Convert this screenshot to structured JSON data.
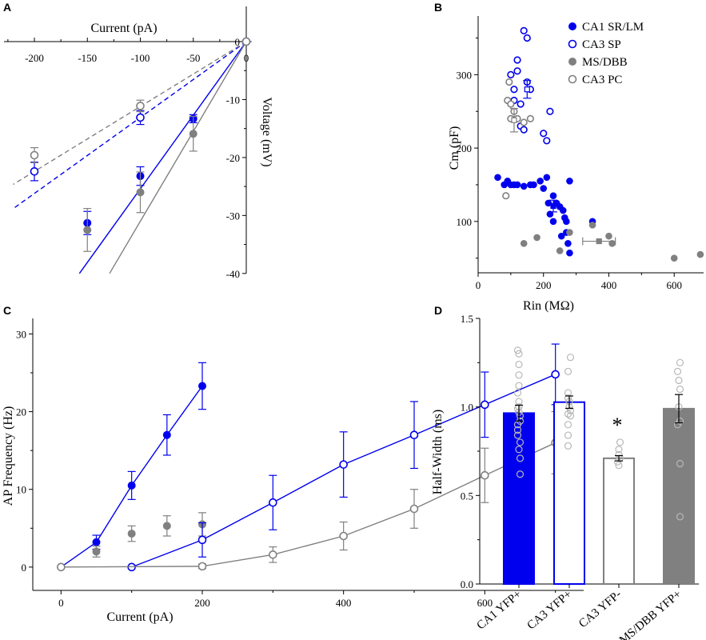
{
  "colors": {
    "blue": "#0000ee",
    "gray": "#808080",
    "lightgray": "#b8b8b8",
    "black": "#000000"
  },
  "chart_data": [
    {
      "panel": "A",
      "type": "scatter",
      "xlabel": "Current (pA)",
      "ylabel": "Voltage (mV)",
      "xlim": [
        -225,
        5
      ],
      "ylim": [
        -40,
        0
      ],
      "xticks": [
        -200,
        -150,
        -100,
        -50,
        0
      ],
      "yticks": [
        0,
        -10,
        -20,
        -30,
        -40
      ],
      "series": [
        {
          "name": "filled blue",
          "style": "filled",
          "color": "#0000ee",
          "x": [
            -150,
            -100,
            -50,
            0
          ],
          "y": [
            -31.3,
            -23.2,
            -13.3,
            0
          ],
          "err": [
            2.0,
            1.6,
            0.7,
            0
          ]
        },
        {
          "name": "filled gray",
          "style": "filled",
          "color": "#808080",
          "x": [
            -150,
            -100,
            -50,
            0
          ],
          "y": [
            -32.5,
            -26.0,
            -15.9,
            0
          ],
          "err": [
            3.7,
            3.5,
            3.0,
            0
          ]
        },
        {
          "name": "open blue",
          "style": "open",
          "color": "#0000ee",
          "x": [
            -200,
            -100,
            0
          ],
          "y": [
            -22.4,
            -13.1,
            0
          ],
          "err": [
            1.6,
            1.2,
            0
          ]
        },
        {
          "name": "open gray",
          "style": "open",
          "color": "#808080",
          "x": [
            -200,
            -100,
            0
          ],
          "y": [
            -19.6,
            -11.1,
            0
          ],
          "err": [
            1.3,
            1.0,
            0
          ]
        }
      ],
      "fits": [
        {
          "color": "#0000ee",
          "dash": false,
          "slope": 0.254
        },
        {
          "color": "#808080",
          "dash": false,
          "slope": 0.31
        },
        {
          "color": "#0000ee",
          "dash": true,
          "slope": 0.131
        },
        {
          "color": "#808080",
          "dash": true,
          "slope": 0.112
        }
      ]
    },
    {
      "panel": "B",
      "type": "scatter",
      "xlabel": "Rin (MΩ)",
      "ylabel": "Cm (pF)",
      "xlim": [
        0,
        690
      ],
      "ylim": [
        30,
        380
      ],
      "xticks": [
        0,
        200,
        400,
        600
      ],
      "yticks": [
        100,
        200,
        300
      ],
      "legend": [
        "CA1 SR/LM",
        "CA3 SP",
        "MS/DBB",
        "CA3 PC"
      ],
      "series": [
        {
          "name": "CA1 SR/LM",
          "style": "filled",
          "color": "#0000ee",
          "x": [
            60,
            80,
            90,
            100,
            110,
            120,
            140,
            160,
            170,
            190,
            200,
            210,
            215,
            220,
            230,
            230,
            240,
            250,
            255,
            260,
            265,
            270,
            270,
            275,
            280,
            280,
            350
          ],
          "y": [
            160,
            150,
            155,
            150,
            150,
            150,
            148,
            150,
            150,
            155,
            145,
            160,
            125,
            110,
            100,
            135,
            125,
            120,
            80,
            115,
            105,
            100,
            85,
            70,
            57,
            155,
            100
          ],
          "mean": {
            "x": 230,
            "y": 121,
            "yerr": 8
          }
        },
        {
          "name": "CA3 SP",
          "style": "open",
          "color": "#0000ee",
          "x": [
            100,
            110,
            120,
            130,
            140,
            150,
            160,
            200,
            210,
            220,
            130,
            140,
            150,
            120,
            110
          ],
          "y": [
            300,
            280,
            320,
            260,
            360,
            350,
            280,
            220,
            210,
            250,
            230,
            225,
            290,
            305,
            265
          ],
          "mean": {
            "x": 150,
            "y": 280,
            "yerr": 12
          }
        },
        {
          "name": "MS/DBB",
          "style": "filled",
          "color": "#808080",
          "x": [
            140,
            180,
            280,
            350,
            400,
            410,
            600,
            680,
            250
          ],
          "y": [
            70,
            78,
            85,
            95,
            80,
            70,
            50,
            55,
            60
          ],
          "mean": {
            "x": 370,
            "y": 73,
            "xerr": 50
          }
        },
        {
          "name": "CA3 PC",
          "style": "open",
          "color": "#808080",
          "x": [
            90,
            95,
            100,
            110,
            120,
            140,
            160,
            100,
            85
          ],
          "y": [
            265,
            290,
            260,
            250,
            240,
            235,
            240,
            240,
            135
          ],
          "mean": {
            "x": 110,
            "y": 238,
            "yerr": 16
          }
        }
      ]
    },
    {
      "panel": "C",
      "type": "line",
      "xlabel": "Current (pA)",
      "ylabel": "AP Frequency (Hz)",
      "xlim": [
        -40,
        740
      ],
      "ylim": [
        -3,
        32
      ],
      "xticks": [
        0,
        200,
        400,
        600
      ],
      "yticks": [
        0,
        10,
        20,
        30
      ],
      "series": [
        {
          "name": "filled blue",
          "style": "filled",
          "color": "#0000ee",
          "connect": true,
          "x": [
            0,
            50,
            100,
            150,
            200
          ],
          "y": [
            0,
            3.2,
            10.5,
            17.0,
            23.3
          ],
          "err": [
            0,
            0.9,
            1.8,
            2.6,
            3.0
          ]
        },
        {
          "name": "filled gray",
          "style": "filled",
          "color": "#808080",
          "connect": false,
          "x": [
            0,
            50,
            100,
            150,
            200
          ],
          "y": [
            0,
            2.0,
            4.3,
            5.3,
            5.5
          ],
          "err": [
            0,
            0.7,
            1.0,
            1.3,
            1.5
          ]
        },
        {
          "name": "open blue",
          "style": "open",
          "color": "#0000ee",
          "connect": true,
          "x": [
            100,
            200,
            300,
            400,
            500,
            600,
            700
          ],
          "y": [
            0,
            3.5,
            8.3,
            13.2,
            17.0,
            20.9,
            24.8
          ],
          "err": [
            0,
            2.2,
            3.5,
            4.2,
            4.3,
            4.2,
            3.9
          ]
        },
        {
          "name": "open gray",
          "style": "open",
          "color": "#808080",
          "connect": true,
          "x": [
            0,
            200,
            300,
            400,
            500,
            600,
            700
          ],
          "y": [
            0,
            0.1,
            1.6,
            4.0,
            7.5,
            11.8,
            16.0
          ],
          "err": [
            0,
            0.3,
            1.0,
            1.8,
            2.5,
            3.5,
            4.0
          ]
        }
      ]
    },
    {
      "panel": "D",
      "type": "bar",
      "ylabel": "Half-Width (ms)",
      "ylim": [
        0,
        1.5
      ],
      "yticks": [
        "0.0",
        "0.5",
        "1.0",
        "1.5"
      ],
      "categories": [
        "CA1 YFP+",
        "CA3 YFP+",
        "CA3 YFP-",
        "MS/DBB YFP+"
      ],
      "values": [
        0.965,
        1.027,
        0.71,
        0.99
      ],
      "errors": [
        0.045,
        0.035,
        0.015,
        0.08
      ],
      "fill": [
        "#0000ee",
        "#ffffff",
        "#ffffff",
        "#808080"
      ],
      "edge": [
        "#0000ee",
        "#0000ee",
        "#808080",
        "#808080"
      ],
      "points": [
        [
          1.32,
          1.3,
          1.24,
          1.18,
          1.12,
          1.08,
          1.03,
          0.99,
          0.95,
          0.92,
          0.9,
          0.87,
          0.84,
          0.8,
          0.76,
          0.71,
          0.62,
          1.0,
          0.97
        ],
        [
          1.28,
          1.2,
          1.08,
          1.05,
          1.03,
          1.0,
          0.98,
          0.96,
          0.95,
          0.9,
          0.84,
          0.78
        ],
        [
          0.8,
          0.76,
          0.73,
          0.71,
          0.69,
          0.67
        ],
        [
          1.25,
          1.2,
          1.15,
          1.1,
          1.0,
          0.92,
          0.9,
          0.68,
          0.38
        ]
      ],
      "annotation": "*"
    }
  ],
  "panel_labels": [
    "A",
    "B",
    "C",
    "D"
  ]
}
